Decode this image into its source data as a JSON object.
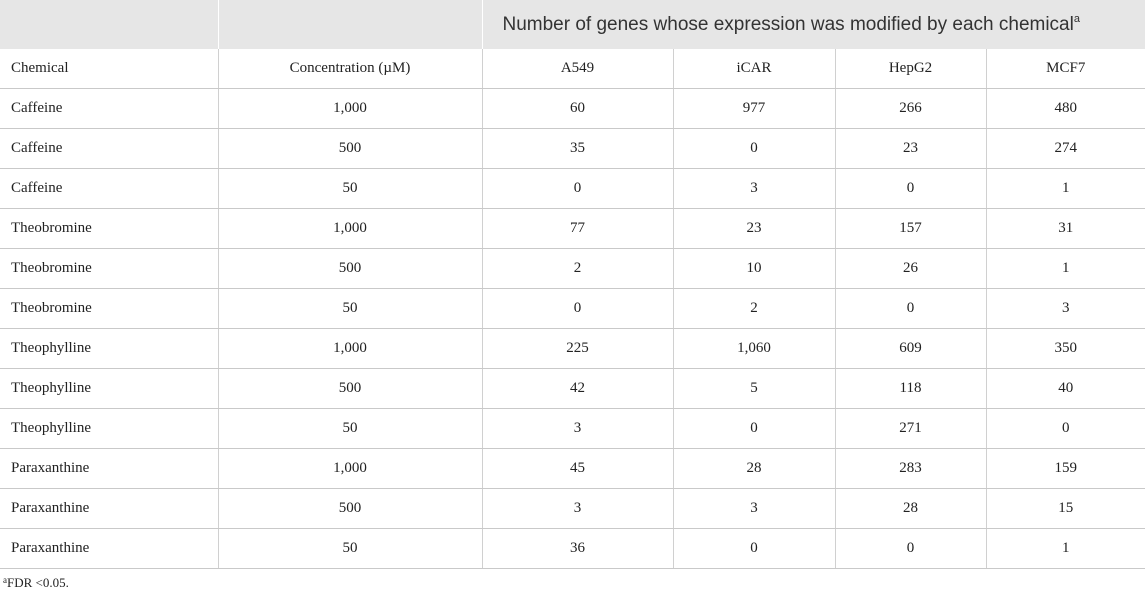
{
  "table": {
    "group_header": "Number of genes whose expression was modified by each chemical",
    "group_header_marker": "a",
    "columns": [
      "Chemical",
      "Concentration (µM)",
      "A549",
      "iCAR",
      "HepG2",
      "MCF7"
    ],
    "rows": [
      [
        "Caffeine",
        "1,000",
        "60",
        "977",
        "266",
        "480"
      ],
      [
        "Caffeine",
        "500",
        "35",
        "0",
        "23",
        "274"
      ],
      [
        "Caffeine",
        "50",
        "0",
        "3",
        "0",
        "1"
      ],
      [
        "Theobromine",
        "1,000",
        "77",
        "23",
        "157",
        "31"
      ],
      [
        "Theobromine",
        "500",
        "2",
        "10",
        "26",
        "1"
      ],
      [
        "Theobromine",
        "50",
        "0",
        "2",
        "0",
        "3"
      ],
      [
        "Theophylline",
        "1,000",
        "225",
        "1,060",
        "609",
        "350"
      ],
      [
        "Theophylline",
        "500",
        "42",
        "5",
        "118",
        "40"
      ],
      [
        "Theophylline",
        "50",
        "3",
        "0",
        "271",
        "0"
      ],
      [
        "Paraxanthine",
        "1,000",
        "45",
        "28",
        "283",
        "159"
      ],
      [
        "Paraxanthine",
        "500",
        "3",
        "3",
        "28",
        "15"
      ],
      [
        "Paraxanthine",
        "50",
        "36",
        "0",
        "0",
        "1"
      ]
    ]
  },
  "footnote": {
    "marker": "a",
    "text": "FDR <0.05."
  }
}
